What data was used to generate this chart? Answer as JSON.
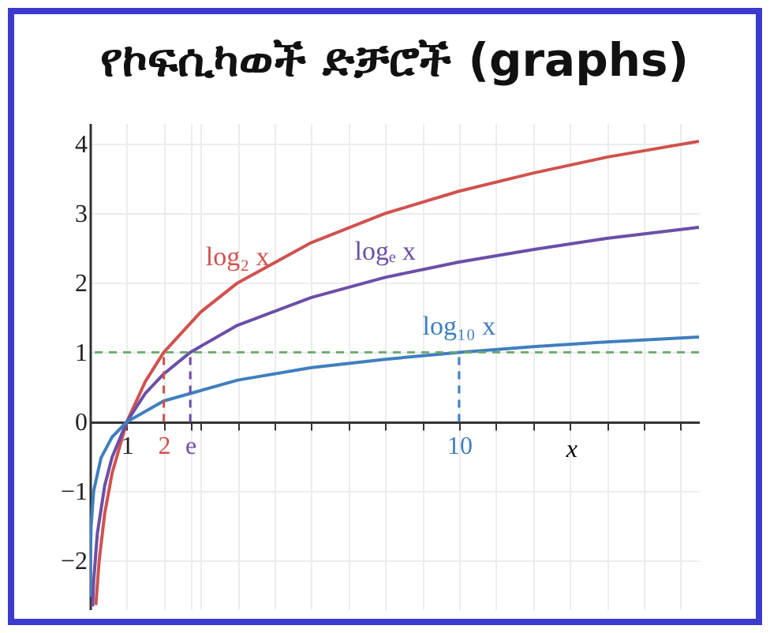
{
  "chart_data": {
    "type": "line",
    "title": "የኮፍሲካወች ድቻሮች (graphs)",
    "xlabel": "x",
    "xlim": [
      0,
      16.5
    ],
    "ylim": [
      -2.7,
      4.3
    ],
    "xticks": [
      1,
      2,
      {
        "value": 2.718,
        "label": "e"
      },
      {
        "value": 3,
        "label": null
      },
      {
        "value": 4,
        "label": null
      },
      {
        "value": 5,
        "label": null
      },
      {
        "value": 6,
        "label": null
      },
      {
        "value": 7,
        "label": null
      },
      {
        "value": 8,
        "label": null
      },
      {
        "value": 9,
        "label": null
      },
      10,
      {
        "value": 11,
        "label": null
      },
      {
        "value": 12,
        "label": null
      },
      {
        "value": 13,
        "label": null
      },
      {
        "value": 14,
        "label": null
      },
      {
        "value": 15,
        "label": null
      },
      {
        "value": 16,
        "label": null
      }
    ],
    "yticks": [
      {
        "value": -2,
        "label": "−2"
      },
      {
        "value": -1,
        "label": "−1"
      },
      0,
      1,
      2,
      3,
      4
    ],
    "grid": true,
    "marker": "none",
    "ref_lines": [
      {
        "axis": "y",
        "value": 1,
        "color": "#6aa86a",
        "line_style": "dashed"
      }
    ],
    "series": [
      {
        "name": "log₂ x",
        "color": "#d0524e",
        "x": [
          0.16,
          0.25,
          0.4,
          0.6,
          1,
          1.5,
          2,
          3,
          4,
          6,
          8,
          10,
          12,
          14,
          16.5
        ],
        "values": [
          -2.64,
          -2,
          -1.32,
          -0.74,
          0,
          0.58,
          1,
          1.58,
          2,
          2.58,
          3,
          3.32,
          3.58,
          3.81,
          4.04
        ]
      },
      {
        "name": "logₑ x",
        "color": "#6a4fa8",
        "x": [
          0.07,
          0.1,
          0.2,
          0.4,
          0.6,
          1,
          1.5,
          2,
          2.718,
          4,
          6,
          8,
          10,
          12,
          14,
          16.5
        ],
        "values": [
          -2.66,
          -2.3,
          -1.61,
          -0.92,
          -0.51,
          0,
          0.41,
          0.69,
          1,
          1.39,
          1.79,
          2.08,
          2.3,
          2.48,
          2.64,
          2.8
        ]
      },
      {
        "name": "log₁₀ x",
        "color": "#3f7fbf",
        "x": [
          0.003,
          0.01,
          0.03,
          0.1,
          0.3,
          0.6,
          1,
          2,
          4,
          6,
          8,
          10,
          12,
          14,
          16.5
        ],
        "values": [
          -2.52,
          -2,
          -1.52,
          -1,
          -0.52,
          -0.22,
          0,
          0.3,
          0.6,
          0.78,
          0.9,
          1,
          1.08,
          1.15,
          1.22
        ]
      },
      {
        "color": "#d0524e",
        "line_style": "dashed",
        "x": [
          2,
          2
        ],
        "values": [
          0,
          1
        ]
      },
      {
        "color": "#6a4fa8",
        "line_style": "dashed",
        "x": [
          2.718,
          2.718
        ],
        "values": [
          0,
          1
        ]
      },
      {
        "color": "#3f7fbf",
        "line_style": "dashed",
        "x": [
          10,
          10
        ],
        "values": [
          0,
          1
        ]
      }
    ]
  }
}
